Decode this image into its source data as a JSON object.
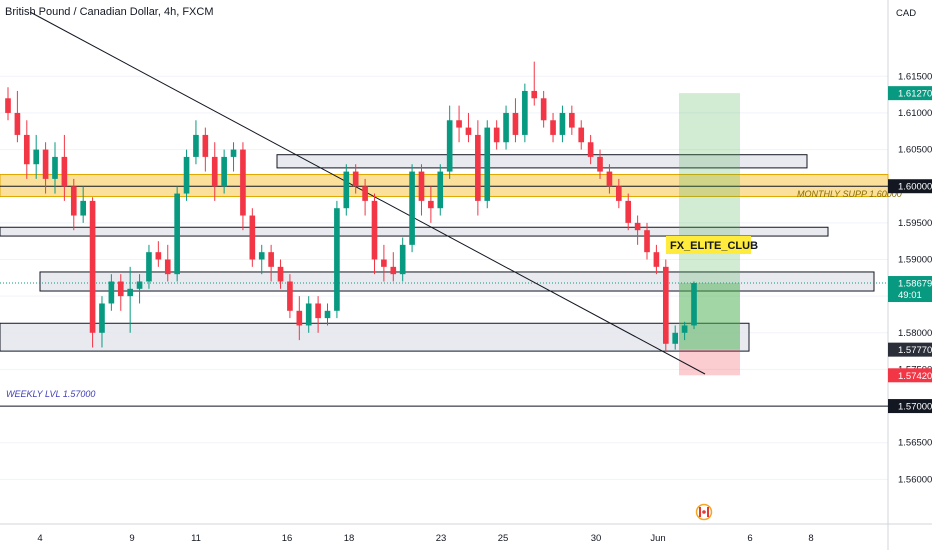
{
  "header": {
    "title": "British Pound / Canadian Dollar, 4h, FXCM"
  },
  "chart_data": {
    "type": "candlestick",
    "symbol": "GBPCAD",
    "timeframe": "4h",
    "currency_label": "CAD",
    "y_scale": {
      "min": 1.555,
      "max": 1.6235
    },
    "y_ticks": [
      "1.61500",
      "1.61000",
      "1.60500",
      "1.60000",
      "1.59500",
      "1.59000",
      "1.58500",
      "1.58000",
      "1.57500",
      "1.57000",
      "1.56500",
      "1.56000"
    ],
    "x_ticks": [
      "4",
      "9",
      "11",
      "16",
      "18",
      "23",
      "25",
      "30",
      "Jun",
      "6",
      "8"
    ],
    "price_badges": [
      {
        "label": "1.61270",
        "value": 1.6127,
        "color": "#089981"
      },
      {
        "label": "1.60000",
        "value": 1.6,
        "color": "#131722"
      },
      {
        "label": "1.58679",
        "sub": "49:01",
        "value": 1.58679,
        "color": "#089981"
      },
      {
        "label": "1.57770",
        "value": 1.5777,
        "color": "#2a2e39"
      },
      {
        "label": "1.57420",
        "value": 1.5742,
        "color": "#f23645"
      },
      {
        "label": "1.57000",
        "value": 1.57,
        "color": "#131722"
      }
    ],
    "annotations": {
      "monthly_support": "MONTHLY SUPP 1.60000",
      "weekly_level": "WEEKLY LVL 1.57000",
      "club_label": "FX_ELITE_CLUB"
    },
    "levels": [
      {
        "name": "monthly-support",
        "from": 1.5986,
        "to": 1.6016,
        "color": "#f5c542"
      },
      {
        "name": "resistance-zone-upper",
        "from": 1.6025,
        "to": 1.6043,
        "color": "#d1d4dc"
      },
      {
        "name": "zone-1-595",
        "from": 1.5932,
        "to": 1.5944,
        "color": "#d1d4dc"
      },
      {
        "name": "zone-1-586",
        "from": 1.5857,
        "to": 1.5883,
        "color": "#d1d4dc"
      },
      {
        "name": "zone-1-578",
        "from": 1.5775,
        "to": 1.5813,
        "color": "#d1d4dc"
      }
    ],
    "weekly_level": 1.57,
    "position": {
      "entry": 1.5777,
      "target": 1.6127,
      "stop": 1.5742
    },
    "candles": [
      [
        1.612,
        1.6135,
        1.609,
        1.61
      ],
      [
        1.61,
        1.613,
        1.606,
        1.607
      ],
      [
        1.607,
        1.609,
        1.601,
        1.603
      ],
      [
        1.603,
        1.607,
        1.601,
        1.605
      ],
      [
        1.605,
        1.606,
        1.599,
        1.601
      ],
      [
        1.601,
        1.606,
        1.599,
        1.604
      ],
      [
        1.604,
        1.607,
        1.598,
        1.6
      ],
      [
        1.6,
        1.601,
        1.594,
        1.596
      ],
      [
        1.596,
        1.6,
        1.595,
        1.598
      ],
      [
        1.598,
        1.5985,
        1.578,
        1.58
      ],
      [
        1.58,
        1.585,
        1.578,
        1.584
      ],
      [
        1.584,
        1.588,
        1.583,
        1.587
      ],
      [
        1.587,
        1.588,
        1.583,
        1.585
      ],
      [
        1.585,
        1.589,
        1.58,
        1.586
      ],
      [
        1.586,
        1.588,
        1.584,
        1.587
      ],
      [
        1.587,
        1.592,
        1.586,
        1.591
      ],
      [
        1.591,
        1.5925,
        1.589,
        1.59
      ],
      [
        1.59,
        1.592,
        1.587,
        1.588
      ],
      [
        1.588,
        1.6,
        1.587,
        1.599
      ],
      [
        1.599,
        1.605,
        1.598,
        1.604
      ],
      [
        1.604,
        1.609,
        1.603,
        1.607
      ],
      [
        1.607,
        1.608,
        1.602,
        1.604
      ],
      [
        1.604,
        1.606,
        1.598,
        1.6
      ],
      [
        1.6,
        1.605,
        1.599,
        1.604
      ],
      [
        1.604,
        1.606,
        1.602,
        1.605
      ],
      [
        1.605,
        1.606,
        1.594,
        1.596
      ],
      [
        1.596,
        1.597,
        1.589,
        1.59
      ],
      [
        1.59,
        1.592,
        1.588,
        1.591
      ],
      [
        1.591,
        1.592,
        1.587,
        1.589
      ],
      [
        1.589,
        1.59,
        1.586,
        1.587
      ],
      [
        1.587,
        1.588,
        1.582,
        1.583
      ],
      [
        1.583,
        1.585,
        1.579,
        1.581
      ],
      [
        1.581,
        1.585,
        1.58,
        1.584
      ],
      [
        1.584,
        1.585,
        1.58,
        1.582
      ],
      [
        1.582,
        1.584,
        1.581,
        1.583
      ],
      [
        1.583,
        1.598,
        1.582,
        1.597
      ],
      [
        1.597,
        1.603,
        1.596,
        1.602
      ],
      [
        1.602,
        1.603,
        1.599,
        1.6
      ],
      [
        1.6,
        1.601,
        1.596,
        1.598
      ],
      [
        1.598,
        1.599,
        1.588,
        1.59
      ],
      [
        1.59,
        1.592,
        1.587,
        1.589
      ],
      [
        1.589,
        1.591,
        1.587,
        1.588
      ],
      [
        1.588,
        1.593,
        1.587,
        1.592
      ],
      [
        1.592,
        1.603,
        1.591,
        1.602
      ],
      [
        1.602,
        1.603,
        1.596,
        1.598
      ],
      [
        1.598,
        1.6,
        1.595,
        1.597
      ],
      [
        1.597,
        1.603,
        1.596,
        1.602
      ],
      [
        1.602,
        1.611,
        1.601,
        1.609
      ],
      [
        1.609,
        1.611,
        1.606,
        1.608
      ],
      [
        1.608,
        1.61,
        1.606,
        1.607
      ],
      [
        1.607,
        1.609,
        1.596,
        1.598
      ],
      [
        1.598,
        1.609,
        1.597,
        1.608
      ],
      [
        1.608,
        1.609,
        1.605,
        1.606
      ],
      [
        1.606,
        1.611,
        1.605,
        1.61
      ],
      [
        1.61,
        1.612,
        1.606,
        1.607
      ],
      [
        1.607,
        1.614,
        1.606,
        1.613
      ],
      [
        1.613,
        1.617,
        1.611,
        1.612
      ],
      [
        1.612,
        1.613,
        1.608,
        1.609
      ],
      [
        1.609,
        1.61,
        1.606,
        1.607
      ],
      [
        1.607,
        1.611,
        1.606,
        1.61
      ],
      [
        1.61,
        1.611,
        1.607,
        1.608
      ],
      [
        1.608,
        1.609,
        1.605,
        1.606
      ],
      [
        1.606,
        1.607,
        1.603,
        1.604
      ],
      [
        1.604,
        1.605,
        1.601,
        1.602
      ],
      [
        1.602,
        1.603,
        1.599,
        1.6
      ],
      [
        1.6,
        1.601,
        1.597,
        1.598
      ],
      [
        1.598,
        1.599,
        1.594,
        1.595
      ],
      [
        1.595,
        1.596,
        1.592,
        1.594
      ],
      [
        1.594,
        1.595,
        1.59,
        1.591
      ],
      [
        1.591,
        1.592,
        1.588,
        1.589
      ],
      [
        1.589,
        1.59,
        1.5775,
        1.5785
      ],
      [
        1.5785,
        1.581,
        1.5777,
        1.58
      ],
      [
        1.58,
        1.5815,
        1.579,
        1.581
      ],
      [
        1.581,
        1.587,
        1.5805,
        1.5868
      ]
    ]
  }
}
